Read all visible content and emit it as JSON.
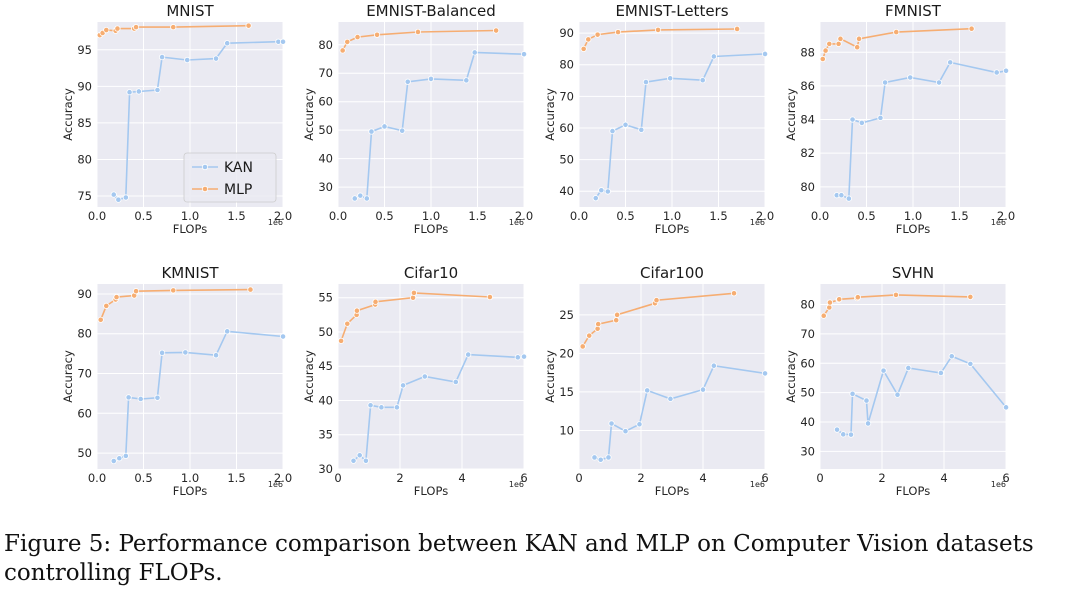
{
  "caption": "Figure 5: Performance comparison between KAN and MLP on Computer Vision datasets controlling FLOPs.",
  "colors": {
    "kan": "#a4c8f0",
    "mlp": "#f6ad72",
    "plot_bg": "#eaeaf2",
    "grid": "#ffffff"
  },
  "chart_data": [
    {
      "type": "line",
      "title": "MNIST",
      "xlabel": "FLOPs",
      "ylabel": "Accuracy",
      "x_scale_label": "1e6",
      "xlim": [
        0,
        2
      ],
      "ylim": [
        73.5,
        98.8
      ],
      "xticks": [
        0,
        0.5,
        1,
        1.5,
        2
      ],
      "xtick_labels": [
        "0.0",
        "0.5",
        "1.0",
        "1.5",
        "2.0"
      ],
      "yticks": [
        75,
        80,
        85,
        90,
        95
      ],
      "ytick_labels": [
        "75",
        "80",
        "85",
        "90",
        "95"
      ],
      "legend": {
        "position": "lower-right",
        "entries": [
          "KAN",
          "MLP"
        ]
      },
      "series": [
        {
          "name": "KAN",
          "x": [
            0.18,
            0.23,
            0.31,
            0.35,
            0.45,
            0.65,
            0.7,
            0.97,
            1.28,
            1.4,
            1.95,
            2.0
          ],
          "y": [
            75.2,
            74.5,
            74.8,
            89.2,
            89.3,
            89.5,
            94.0,
            93.6,
            93.8,
            95.9,
            96.1,
            96.1
          ]
        },
        {
          "name": "MLP",
          "x": [
            0.03,
            0.06,
            0.1,
            0.2,
            0.22,
            0.4,
            0.42,
            0.82,
            1.63
          ],
          "y": [
            97.0,
            97.3,
            97.7,
            97.6,
            97.9,
            97.9,
            98.1,
            98.1,
            98.3
          ]
        }
      ]
    },
    {
      "type": "line",
      "title": "EMNIST-Balanced",
      "xlabel": "FLOPs",
      "ylabel": "Accuracy",
      "x_scale_label": "1e6",
      "xlim": [
        0,
        2
      ],
      "ylim": [
        23,
        88
      ],
      "xticks": [
        0,
        0.5,
        1,
        1.5,
        2
      ],
      "xtick_labels": [
        "0.0",
        "0.5",
        "1.0",
        "1.5",
        "2.0"
      ],
      "yticks": [
        30,
        40,
        50,
        60,
        70,
        80
      ],
      "ytick_labels": [
        "30",
        "40",
        "50",
        "60",
        "70",
        "80"
      ],
      "series": [
        {
          "name": "KAN",
          "x": [
            0.18,
            0.24,
            0.31,
            0.36,
            0.5,
            0.69,
            0.75,
            1.0,
            1.38,
            1.47,
            2.0
          ],
          "y": [
            26.0,
            27.0,
            26.0,
            49.5,
            51.3,
            49.8,
            67.0,
            68.0,
            67.5,
            77.3,
            76.7
          ]
        },
        {
          "name": "MLP",
          "x": [
            0.05,
            0.1,
            0.21,
            0.42,
            0.86,
            1.7
          ],
          "y": [
            78.0,
            81.0,
            82.7,
            83.5,
            84.5,
            85.0
          ]
        }
      ]
    },
    {
      "type": "line",
      "title": "EMNIST-Letters",
      "xlabel": "FLOPs",
      "ylabel": "Accuracy",
      "x_scale_label": "1e6",
      "xlim": [
        0,
        2
      ],
      "ylim": [
        35,
        93.5
      ],
      "xticks": [
        0,
        0.5,
        1,
        1.5,
        2
      ],
      "xtick_labels": [
        "0.0",
        "0.5",
        "1.0",
        "1.5",
        "2.0"
      ],
      "yticks": [
        40,
        50,
        60,
        70,
        80,
        90
      ],
      "ytick_labels": [
        "40",
        "50",
        "60",
        "70",
        "80",
        "90"
      ],
      "series": [
        {
          "name": "KAN",
          "x": [
            0.18,
            0.24,
            0.31,
            0.36,
            0.5,
            0.67,
            0.72,
            0.98,
            1.33,
            1.45,
            2.0
          ],
          "y": [
            37.8,
            40.3,
            39.9,
            59.0,
            61.0,
            59.4,
            74.5,
            75.7,
            75.1,
            82.6,
            83.4
          ]
        },
        {
          "name": "MLP",
          "x": [
            0.05,
            0.1,
            0.2,
            0.42,
            0.85,
            1.7
          ],
          "y": [
            85.0,
            88.0,
            89.5,
            90.3,
            91.0,
            91.3
          ]
        }
      ]
    },
    {
      "type": "line",
      "title": "FMNIST",
      "xlabel": "FLOPs",
      "ylabel": "Accuracy",
      "x_scale_label": "1e6",
      "xlim": [
        0,
        2
      ],
      "ylim": [
        78.8,
        89.8
      ],
      "xticks": [
        0,
        0.5,
        1,
        1.5,
        2
      ],
      "xtick_labels": [
        "0.0",
        "0.5",
        "1.0",
        "1.5",
        "2.0"
      ],
      "yticks": [
        80,
        82,
        84,
        86,
        88
      ],
      "ytick_labels": [
        "80",
        "82",
        "84",
        "86",
        "88"
      ],
      "series": [
        {
          "name": "KAN",
          "x": [
            0.18,
            0.23,
            0.31,
            0.35,
            0.45,
            0.65,
            0.7,
            0.97,
            1.28,
            1.4,
            1.9,
            2.0
          ],
          "y": [
            79.5,
            79.5,
            79.3,
            84.0,
            83.8,
            84.1,
            86.2,
            86.5,
            86.2,
            87.4,
            86.8,
            86.9
          ]
        },
        {
          "name": "MLP",
          "x": [
            0.03,
            0.06,
            0.1,
            0.2,
            0.22,
            0.4,
            0.42,
            0.82,
            1.63
          ],
          "y": [
            87.6,
            88.1,
            88.5,
            88.5,
            88.8,
            88.3,
            88.8,
            89.2,
            89.4
          ]
        }
      ]
    },
    {
      "type": "line",
      "title": "KMNIST",
      "xlabel": "FLOPs",
      "ylabel": "Accuracy",
      "x_scale_label": "1e6",
      "xlim": [
        0,
        2
      ],
      "ylim": [
        46,
        92.5
      ],
      "xticks": [
        0,
        0.5,
        1,
        1.5,
        2
      ],
      "xtick_labels": [
        "0.0",
        "0.5",
        "1.0",
        "1.5",
        "2.0"
      ],
      "yticks": [
        50,
        60,
        70,
        80,
        90
      ],
      "ytick_labels": [
        "50",
        "60",
        "70",
        "80",
        "90"
      ],
      "series": [
        {
          "name": "KAN",
          "x": [
            0.18,
            0.24,
            0.31,
            0.34,
            0.47,
            0.65,
            0.7,
            0.95,
            1.28,
            1.4,
            2.0
          ],
          "y": [
            48.0,
            48.7,
            49.3,
            64.0,
            63.6,
            63.9,
            75.2,
            75.3,
            74.6,
            80.6,
            79.3
          ]
        },
        {
          "name": "MLP",
          "x": [
            0.04,
            0.1,
            0.2,
            0.21,
            0.4,
            0.42,
            0.82,
            1.65
          ],
          "y": [
            83.5,
            87.0,
            88.6,
            89.2,
            89.6,
            90.7,
            90.9,
            91.1
          ]
        }
      ]
    },
    {
      "type": "line",
      "title": "Cifar10",
      "xlabel": "FLOPs",
      "ylabel": "Accuracy",
      "x_scale_label": "1e6",
      "xlim": [
        0,
        6
      ],
      "ylim": [
        30,
        57
      ],
      "xticks": [
        0,
        2,
        4,
        6
      ],
      "xtick_labels": [
        "0",
        "2",
        "4",
        "6"
      ],
      "yticks": [
        30,
        35,
        40,
        45,
        50,
        55
      ],
      "ytick_labels": [
        "30",
        "35",
        "40",
        "45",
        "50",
        "55"
      ],
      "series": [
        {
          "name": "KAN",
          "x": [
            0.5,
            0.7,
            0.9,
            1.05,
            1.4,
            1.9,
            2.1,
            2.8,
            3.8,
            4.2,
            5.8,
            6.0
          ],
          "y": [
            31.2,
            32.0,
            31.2,
            39.3,
            39.0,
            39.0,
            42.2,
            43.5,
            42.7,
            46.7,
            46.3,
            46.4
          ]
        },
        {
          "name": "MLP",
          "x": [
            0.1,
            0.3,
            0.6,
            0.61,
            1.2,
            1.21,
            2.42,
            2.45,
            4.9
          ],
          "y": [
            48.7,
            51.2,
            52.5,
            53.1,
            54.0,
            54.4,
            55.0,
            55.7,
            55.1
          ]
        }
      ]
    },
    {
      "type": "line",
      "title": "Cifar100",
      "xlabel": "FLOPs",
      "ylabel": "Accuracy",
      "x_scale_label": "1e6",
      "xlim": [
        0,
        6
      ],
      "ylim": [
        5,
        29
      ],
      "xticks": [
        0,
        2,
        4,
        6
      ],
      "xtick_labels": [
        "0",
        "2",
        "4",
        "6"
      ],
      "yticks": [
        10,
        15,
        20,
        25
      ],
      "ytick_labels": [
        "10",
        "15",
        "20",
        "25"
      ],
      "series": [
        {
          "name": "KAN",
          "x": [
            0.5,
            0.7,
            0.95,
            1.05,
            1.5,
            1.95,
            2.2,
            2.95,
            4.0,
            4.35,
            6.0
          ],
          "y": [
            6.5,
            6.2,
            6.5,
            10.9,
            9.9,
            10.8,
            15.2,
            14.1,
            15.3,
            18.4,
            17.4
          ]
        },
        {
          "name": "MLP",
          "x": [
            0.12,
            0.33,
            0.6,
            0.62,
            1.2,
            1.23,
            2.45,
            2.5,
            5.0
          ],
          "y": [
            20.9,
            22.3,
            23.2,
            23.8,
            24.3,
            25.0,
            26.5,
            26.9,
            27.8
          ]
        }
      ]
    },
    {
      "type": "line",
      "title": "SVHN",
      "xlabel": "FLOPs",
      "ylabel": "Accuracy",
      "x_scale_label": "1e6",
      "xlim": [
        0,
        6
      ],
      "ylim": [
        24,
        87
      ],
      "xticks": [
        0,
        2,
        4,
        6
      ],
      "xtick_labels": [
        "0",
        "2",
        "4",
        "6"
      ],
      "yticks": [
        30,
        40,
        50,
        60,
        70,
        80
      ],
      "ytick_labels": [
        "30",
        "40",
        "50",
        "60",
        "70",
        "80"
      ],
      "series": [
        {
          "name": "KAN",
          "x": [
            0.55,
            0.75,
            1.0,
            1.05,
            1.5,
            1.55,
            2.05,
            2.5,
            2.85,
            3.9,
            4.25,
            4.85,
            6.0
          ],
          "y": [
            37.4,
            35.8,
            35.7,
            49.6,
            47.3,
            39.5,
            57.5,
            49.3,
            58.4,
            56.7,
            62.4,
            59.8,
            45.0
          ]
        },
        {
          "name": "MLP",
          "x": [
            0.12,
            0.3,
            0.32,
            0.6,
            0.62,
            1.2,
            1.22,
            2.45,
            4.85
          ],
          "y": [
            76.2,
            79.0,
            80.7,
            81.6,
            81.8,
            82.2,
            82.5,
            83.3,
            82.6
          ]
        }
      ]
    }
  ]
}
